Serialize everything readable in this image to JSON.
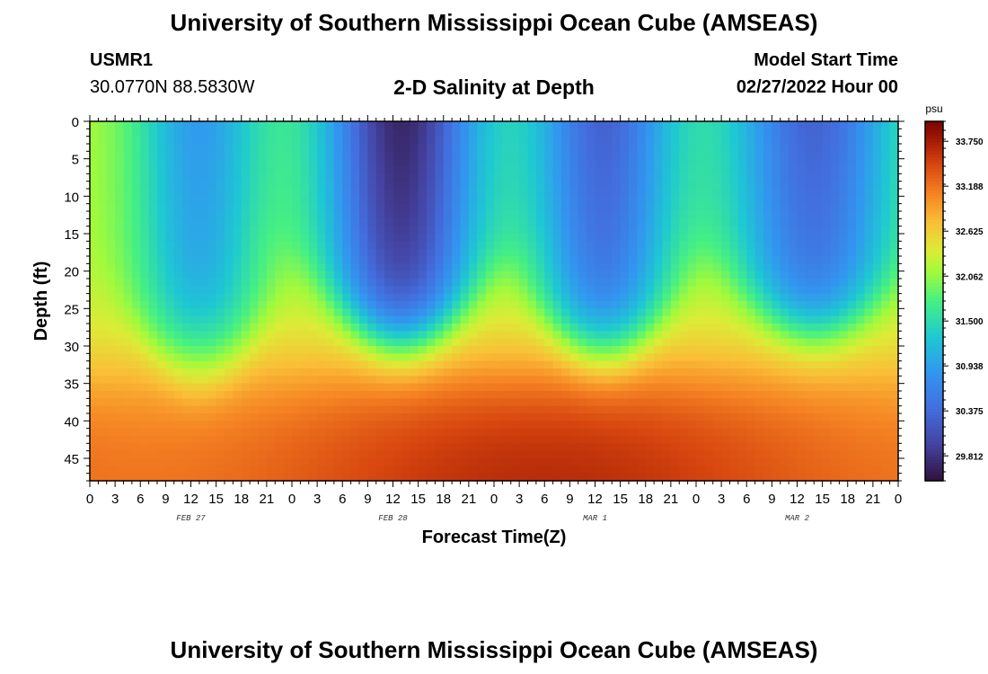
{
  "header": {
    "title": "University of Southern Mississippi Ocean Cube (AMSEAS)",
    "station_id": "USMR1",
    "coordinates": "30.0770N  88.5830W",
    "subtitle": "2-D Salinity at Depth",
    "model_start_label": "Model Start Time",
    "model_start_value": "02/27/2022 Hour 00"
  },
  "footer": {
    "title": "University of Southern Mississippi Ocean Cube (AMSEAS)"
  },
  "chart_data": {
    "type": "heatmap",
    "title": "2-D Salinity at Depth",
    "xlabel": "Forecast Time(Z)",
    "ylabel": "Depth (ft)",
    "x_range_hours": [
      0,
      96
    ],
    "y_range_ft": [
      0,
      48
    ],
    "x_tick_hours": [
      0,
      3,
      6,
      9,
      12,
      15,
      18,
      21,
      24,
      27,
      30,
      33,
      36,
      39,
      42,
      45,
      48,
      51,
      54,
      57,
      60,
      63,
      66,
      69,
      72,
      75,
      78,
      81,
      84,
      87,
      90,
      93,
      96
    ],
    "x_tick_labels": [
      "0",
      "3",
      "6",
      "9",
      "12",
      "15",
      "18",
      "21",
      "0",
      "3",
      "6",
      "9",
      "12",
      "15",
      "18",
      "21",
      "0",
      "3",
      "6",
      "9",
      "12",
      "15",
      "18",
      "21",
      "0",
      "3",
      "6",
      "9",
      "12",
      "15",
      "18",
      "21",
      "0"
    ],
    "date_labels": [
      {
        "label": "FEB 27",
        "hour": 12
      },
      {
        "label": "FEB 28",
        "hour": 36
      },
      {
        "label": "MAR 1",
        "hour": 60
      },
      {
        "label": "MAR 2",
        "hour": 84
      }
    ],
    "y_ticks": [
      0,
      5,
      10,
      15,
      20,
      25,
      30,
      35,
      40,
      45
    ],
    "colorbar": {
      "unit": "psu",
      "min": 29.5,
      "max": 34.0,
      "tick_labels": [
        "33.750",
        "33.188",
        "32.625",
        "32.062",
        "31.500",
        "30.938",
        "30.375",
        "29.812"
      ],
      "tick_values": [
        33.75,
        33.188,
        32.625,
        32.062,
        31.5,
        30.938,
        30.375,
        29.812
      ]
    },
    "fresh_lenses": [
      {
        "center_hour": 13,
        "min_salinity": 30.9,
        "width_hours": 5.0,
        "bottom_depth_ft": 37
      },
      {
        "center_hour": 37,
        "min_salinity": 29.7,
        "width_hours": 6.0,
        "bottom_depth_ft": 31
      },
      {
        "center_hour": 61,
        "min_salinity": 30.3,
        "width_hours": 5.5,
        "bottom_depth_ft": 33
      },
      {
        "center_hour": 86,
        "min_salinity": 30.3,
        "width_hours": 6.5,
        "bottom_depth_ft": 29
      }
    ],
    "surface_background_salinity": 32.2,
    "bottom_salinity": 33.5,
    "time_step_hours": 1,
    "depth_step_ft": 1
  }
}
